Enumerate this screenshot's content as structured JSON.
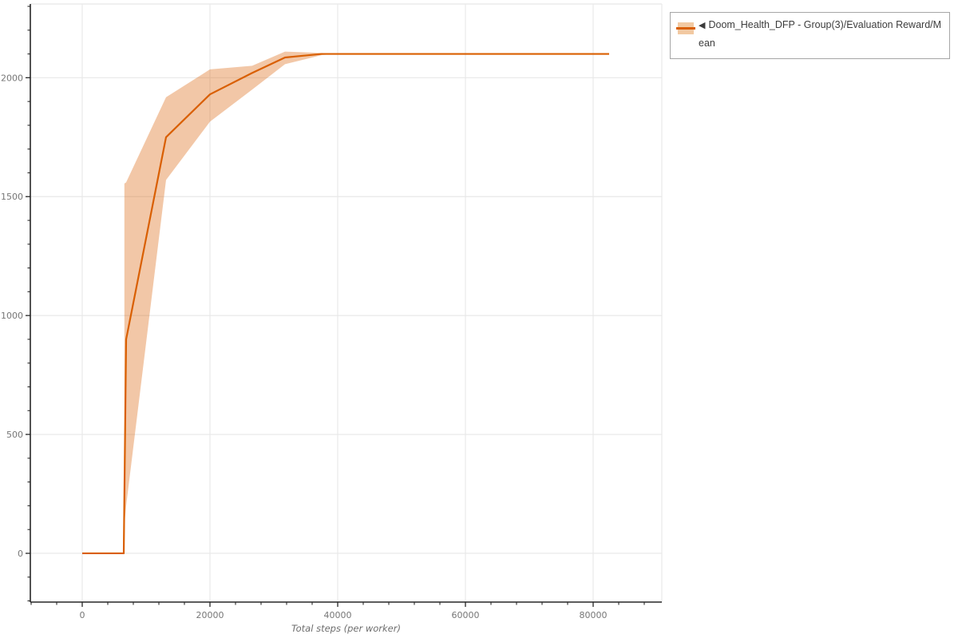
{
  "legend": {
    "collapse_icon": "◀",
    "label": "Doom_Health_DFP - Group(3)/Evaluation Reward/Mean",
    "border_color": "#a6a6a6",
    "swatch_band_color": "#f2c9a2",
    "swatch_line_color": "#d95f02"
  },
  "chart_data": {
    "type": "line",
    "title": "",
    "xlabel": "Total steps (per worker)",
    "ylabel": "",
    "xlim": [
      -8125,
      90750
    ],
    "ylim": [
      -205,
      2310
    ],
    "grid": true,
    "legend_position": "top-right",
    "x_major_ticks": [
      0,
      20000,
      40000,
      60000,
      80000
    ],
    "x_tick_labels": [
      "0",
      "20000",
      "40000",
      "60000",
      "80000"
    ],
    "x_minor_step": 4000,
    "y_major_ticks": [
      0,
      500,
      1000,
      1500,
      2000
    ],
    "y_tick_labels": [
      "0",
      "500",
      "1000",
      "1500",
      "2000"
    ],
    "y_minor_step": 100,
    "series": [
      {
        "name": "Doom_Health_DFP - Group(3)/Evaluation Reward/Mean",
        "color": "#d95f02",
        "band_color": "rgba(217,95,2,0.35)",
        "mean": [
          [
            0,
            0
          ],
          [
            6500,
            0
          ],
          [
            6875,
            900
          ],
          [
            13125,
            1750
          ],
          [
            20000,
            1930
          ],
          [
            26600,
            2020
          ],
          [
            31750,
            2085
          ],
          [
            37500,
            2100
          ],
          [
            82500,
            2100
          ]
        ],
        "band": {
          "x": [
            6600,
            6875,
            13125,
            20000,
            26600,
            31750,
            37500,
            39500
          ],
          "upper": [
            1555,
            1560,
            1918,
            2035,
            2050,
            2110,
            2104,
            2101
          ],
          "lower": [
            120,
            200,
            1570,
            1815,
            1950,
            2057,
            2095,
            2100
          ]
        }
      }
    ],
    "colors": {
      "grid": "#e8e8e8",
      "plot_border": "#e8e8e8",
      "spine": "#262626",
      "tick_label": "#767676",
      "axis_label": "#6e6e6e",
      "background": "#ffffff"
    }
  }
}
